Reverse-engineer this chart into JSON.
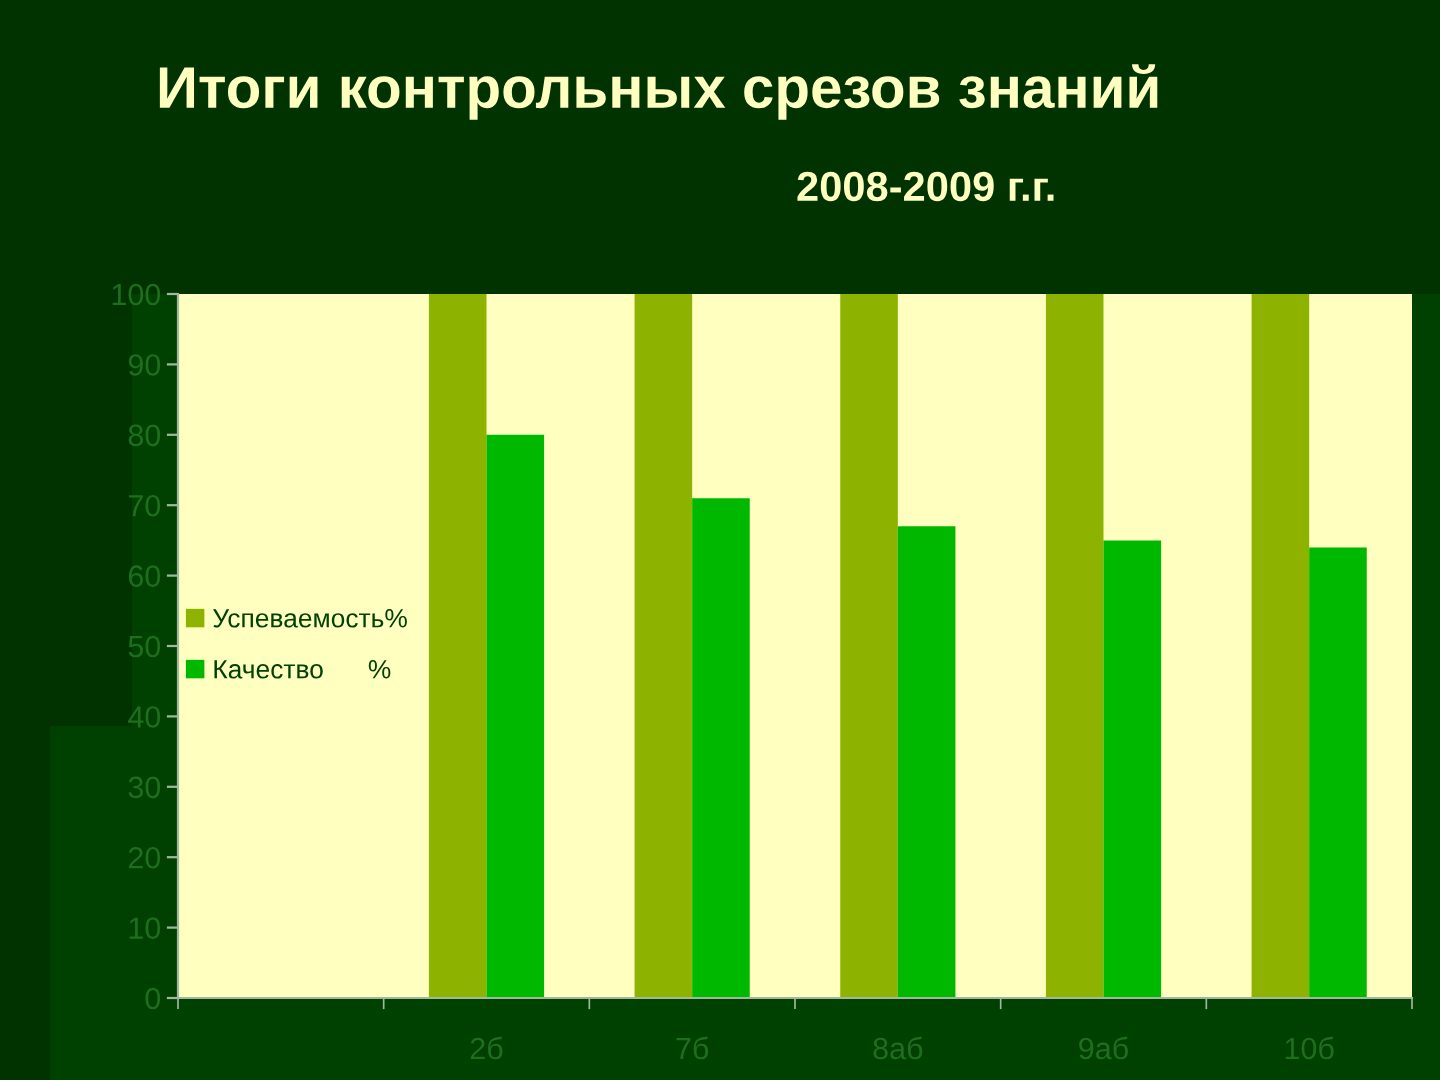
{
  "chart_data": {
    "type": "bar",
    "title": "Итоги контрольных срезов знаний",
    "subtitle": "2008-2009 г.г.",
    "categories": [
      null,
      "2б",
      "7б",
      "8аб",
      "9аб",
      "10б"
    ],
    "series": [
      {
        "name": "Успеваемость%",
        "color": "#8db300",
        "values": [
          null,
          100,
          100,
          100,
          100,
          100
        ]
      },
      {
        "name": "Качество      %",
        "color": "#00b800",
        "values": [
          null,
          80,
          71,
          67,
          65,
          64
        ]
      }
    ],
    "ylim": [
      0,
      100
    ],
    "yticks": [
      0,
      10,
      20,
      30,
      40,
      50,
      60,
      70,
      80,
      90,
      100
    ],
    "grid": false,
    "legend": "left"
  }
}
